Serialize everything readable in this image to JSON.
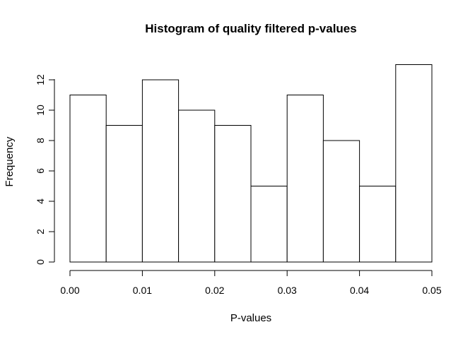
{
  "chart_data": {
    "type": "bar",
    "title": "Histogram of quality filtered p-values",
    "xlabel": "P-values",
    "ylabel": "Frequency",
    "bins": [
      {
        "start": 0.0,
        "end": 0.005,
        "count": 11
      },
      {
        "start": 0.005,
        "end": 0.01,
        "count": 9
      },
      {
        "start": 0.01,
        "end": 0.015,
        "count": 12
      },
      {
        "start": 0.015,
        "end": 0.02,
        "count": 10
      },
      {
        "start": 0.02,
        "end": 0.025,
        "count": 9
      },
      {
        "start": 0.025,
        "end": 0.03,
        "count": 5
      },
      {
        "start": 0.03,
        "end": 0.035,
        "count": 11
      },
      {
        "start": 0.035,
        "end": 0.04,
        "count": 8
      },
      {
        "start": 0.04,
        "end": 0.045,
        "count": 5
      },
      {
        "start": 0.045,
        "end": 0.05,
        "count": 13
      }
    ],
    "xlim": [
      0,
      0.05
    ],
    "ylim": [
      0,
      13
    ],
    "x_ticks": [
      0.0,
      0.01,
      0.02,
      0.03,
      0.04,
      0.05
    ],
    "x_tick_labels": [
      "0.00",
      "0.01",
      "0.02",
      "0.03",
      "0.04",
      "0.05"
    ],
    "y_ticks": [
      0,
      2,
      4,
      6,
      8,
      10,
      12
    ],
    "y_tick_labels": [
      "0",
      "2",
      "4",
      "6",
      "8",
      "10",
      "12"
    ],
    "grid": false,
    "legend": "none"
  }
}
